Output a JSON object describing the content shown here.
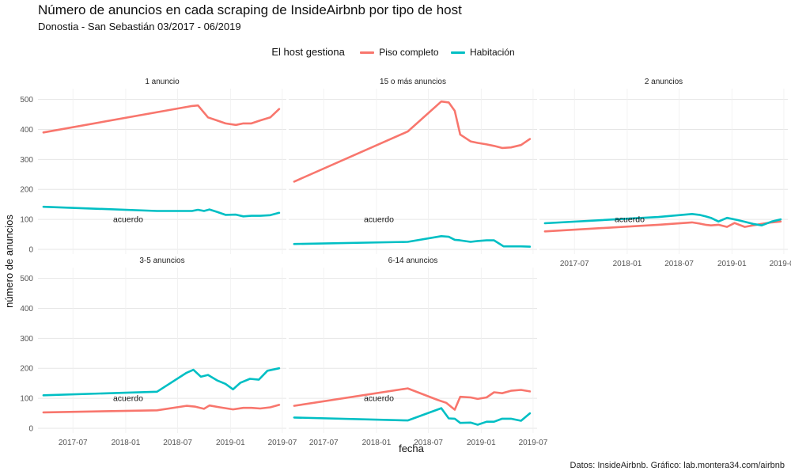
{
  "title": "Número de anuncios en cada scraping de InsideAirbnb por tipo de host",
  "subtitle": "Donostia - San Sebastián 03/2017 - 06/2019",
  "caption": "Datos: InsideAirbnb. Gráfico: lab.montera34.com/airbnb",
  "legend": {
    "title": "El host gestiona",
    "items": [
      {
        "label": "Piso completo",
        "color": "#F8766D"
      },
      {
        "label": "Habitación",
        "color": "#00BFC4"
      }
    ]
  },
  "chart_data": {
    "type": "line",
    "xlabel": "fecha",
    "ylabel": "número de anuncios",
    "ylim": [
      0,
      520
    ],
    "y_ticks": [
      0,
      100,
      200,
      300,
      400,
      500
    ],
    "xlim": [
      "2017-03-01",
      "2019-07-15"
    ],
    "x_ticks": [
      {
        "date": "2017-07-01",
        "label": "2017-07"
      },
      {
        "date": "2018-01-01",
        "label": "2018-01"
      },
      {
        "date": "2018-07-01",
        "label": "2018-07"
      },
      {
        "date": "2019-01-01",
        "label": "2019-01"
      },
      {
        "date": "2019-07-01",
        "label": "2019-07"
      }
    ],
    "annotation": "acuerdo",
    "grid": true,
    "legend_position": "top",
    "panels": [
      {
        "label": "1 anuncio",
        "series": [
          {
            "name": "Piso completo",
            "points": [
              [
                "2017-03-20",
                390
              ],
              [
                "2018-08-20",
                478
              ],
              [
                "2018-09-10",
                480
              ],
              [
                "2018-10-15",
                440
              ],
              [
                "2018-11-15",
                430
              ],
              [
                "2018-12-15",
                420
              ],
              [
                "2019-01-20",
                415
              ],
              [
                "2019-02-15",
                420
              ],
              [
                "2019-03-15",
                420
              ],
              [
                "2019-04-15",
                430
              ],
              [
                "2019-05-20",
                440
              ],
              [
                "2019-06-20",
                468
              ]
            ]
          },
          {
            "name": "Habitación",
            "points": [
              [
                "2017-03-20",
                142
              ],
              [
                "2018-04-20",
                128
              ],
              [
                "2018-08-20",
                128
              ],
              [
                "2018-09-10",
                132
              ],
              [
                "2018-10-01",
                128
              ],
              [
                "2018-10-20",
                133
              ],
              [
                "2018-11-15",
                125
              ],
              [
                "2018-12-15",
                115
              ],
              [
                "2019-01-20",
                116
              ],
              [
                "2019-02-15",
                110
              ],
              [
                "2019-03-15",
                112
              ],
              [
                "2019-04-15",
                112
              ],
              [
                "2019-05-20",
                114
              ],
              [
                "2019-06-20",
                122
              ]
            ]
          }
        ]
      },
      {
        "label": "15 o más anuncios",
        "series": [
          {
            "name": "Piso completo",
            "points": [
              [
                "2017-03-20",
                226
              ],
              [
                "2018-04-20",
                393
              ],
              [
                "2018-08-15",
                493
              ],
              [
                "2018-09-10",
                490
              ],
              [
                "2018-10-01",
                462
              ],
              [
                "2018-10-20",
                383
              ],
              [
                "2018-11-25",
                360
              ],
              [
                "2018-12-20",
                355
              ],
              [
                "2019-01-20",
                350
              ],
              [
                "2019-02-15",
                345
              ],
              [
                "2019-03-15",
                338
              ],
              [
                "2019-04-15",
                340
              ],
              [
                "2019-05-20",
                348
              ],
              [
                "2019-06-20",
                368
              ]
            ]
          },
          {
            "name": "Habitación",
            "points": [
              [
                "2017-03-20",
                18
              ],
              [
                "2018-04-20",
                25
              ],
              [
                "2018-08-15",
                44
              ],
              [
                "2018-09-10",
                42
              ],
              [
                "2018-10-01",
                32
              ],
              [
                "2018-10-20",
                30
              ],
              [
                "2018-11-25",
                25
              ],
              [
                "2018-12-20",
                28
              ],
              [
                "2019-01-20",
                30
              ],
              [
                "2019-02-15",
                30
              ],
              [
                "2019-03-20",
                10
              ],
              [
                "2019-04-15",
                10
              ],
              [
                "2019-05-20",
                10
              ],
              [
                "2019-06-20",
                9
              ]
            ]
          }
        ]
      },
      {
        "label": "2 anuncios",
        "series": [
          {
            "name": "Piso completo",
            "points": [
              [
                "2017-03-20",
                60
              ],
              [
                "2018-04-20",
                82
              ],
              [
                "2018-08-15",
                90
              ],
              [
                "2018-09-10",
                86
              ],
              [
                "2018-10-01",
                82
              ],
              [
                "2018-10-20",
                80
              ],
              [
                "2018-11-15",
                82
              ],
              [
                "2018-12-15",
                75
              ],
              [
                "2019-01-10",
                88
              ],
              [
                "2019-02-15",
                75
              ],
              [
                "2019-03-15",
                80
              ],
              [
                "2019-04-15",
                85
              ],
              [
                "2019-05-20",
                90
              ],
              [
                "2019-06-20",
                93
              ]
            ]
          },
          {
            "name": "Habitación",
            "points": [
              [
                "2017-03-20",
                87
              ],
              [
                "2018-04-20",
                108
              ],
              [
                "2018-08-15",
                118
              ],
              [
                "2018-09-10",
                115
              ],
              [
                "2018-10-01",
                110
              ],
              [
                "2018-10-20",
                105
              ],
              [
                "2018-11-15",
                93
              ],
              [
                "2018-12-15",
                105
              ],
              [
                "2019-01-20",
                98
              ],
              [
                "2019-02-15",
                92
              ],
              [
                "2019-03-15",
                85
              ],
              [
                "2019-04-15",
                80
              ],
              [
                "2019-05-20",
                93
              ],
              [
                "2019-06-20",
                100
              ]
            ]
          }
        ]
      },
      {
        "label": "3-5 anuncios",
        "series": [
          {
            "name": "Piso completo",
            "points": [
              [
                "2017-03-20",
                53
              ],
              [
                "2018-04-20",
                60
              ],
              [
                "2018-08-01",
                75
              ],
              [
                "2018-09-01",
                72
              ],
              [
                "2018-10-01",
                65
              ],
              [
                "2018-10-20",
                76
              ],
              [
                "2018-11-25",
                70
              ],
              [
                "2019-01-10",
                63
              ],
              [
                "2019-02-15",
                68
              ],
              [
                "2019-03-15",
                68
              ],
              [
                "2019-04-15",
                66
              ],
              [
                "2019-05-20",
                70
              ],
              [
                "2019-06-20",
                78
              ]
            ]
          },
          {
            "name": "Habitación",
            "points": [
              [
                "2017-03-20",
                110
              ],
              [
                "2018-04-20",
                122
              ],
              [
                "2018-08-01",
                185
              ],
              [
                "2018-08-25",
                195
              ],
              [
                "2018-09-20",
                172
              ],
              [
                "2018-10-15",
                178
              ],
              [
                "2018-11-15",
                160
              ],
              [
                "2018-12-15",
                148
              ],
              [
                "2019-01-10",
                130
              ],
              [
                "2019-02-05",
                152
              ],
              [
                "2019-03-10",
                165
              ],
              [
                "2019-04-10",
                162
              ],
              [
                "2019-05-10",
                192
              ],
              [
                "2019-06-20",
                200
              ]
            ]
          }
        ]
      },
      {
        "label": "6-14 anuncios",
        "series": [
          {
            "name": "Piso completo",
            "points": [
              [
                "2017-03-20",
                75
              ],
              [
                "2018-04-20",
                133
              ],
              [
                "2018-08-01",
                95
              ],
              [
                "2018-09-01",
                85
              ],
              [
                "2018-10-01",
                62
              ],
              [
                "2018-10-20",
                105
              ],
              [
                "2018-11-25",
                103
              ],
              [
                "2018-12-20",
                98
              ],
              [
                "2019-01-20",
                103
              ],
              [
                "2019-02-15",
                120
              ],
              [
                "2019-03-15",
                117
              ],
              [
                "2019-04-15",
                125
              ],
              [
                "2019-05-20",
                128
              ],
              [
                "2019-06-20",
                123
              ]
            ]
          },
          {
            "name": "Habitación",
            "points": [
              [
                "2017-03-20",
                36
              ],
              [
                "2018-04-20",
                26
              ],
              [
                "2018-08-15",
                67
              ],
              [
                "2018-09-10",
                33
              ],
              [
                "2018-10-01",
                32
              ],
              [
                "2018-10-20",
                18
              ],
              [
                "2018-11-25",
                19
              ],
              [
                "2018-12-20",
                12
              ],
              [
                "2019-01-20",
                22
              ],
              [
                "2019-02-15",
                22
              ],
              [
                "2019-03-15",
                32
              ],
              [
                "2019-04-15",
                32
              ],
              [
                "2019-05-20",
                25
              ],
              [
                "2019-06-20",
                50
              ]
            ]
          }
        ]
      }
    ]
  }
}
